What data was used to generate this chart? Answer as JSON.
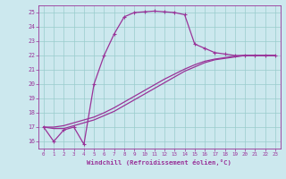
{
  "xlabel": "Windchill (Refroidissement éolien,°C)",
  "ylabel": "",
  "background_color": "#cce8ee",
  "grid_color": "#99cccc",
  "line_color": "#993399",
  "spine_color": "#993399",
  "xlim": [
    -0.5,
    23.5
  ],
  "ylim": [
    15.5,
    25.5
  ],
  "xticks": [
    0,
    1,
    2,
    3,
    4,
    5,
    6,
    7,
    8,
    9,
    10,
    11,
    12,
    13,
    14,
    15,
    16,
    17,
    18,
    19,
    20,
    21,
    22,
    23
  ],
  "yticks": [
    16,
    17,
    18,
    19,
    20,
    21,
    22,
    23,
    24,
    25
  ],
  "line1_x": [
    0,
    1,
    2,
    3,
    4,
    5,
    6,
    7,
    8,
    9,
    10,
    11,
    12,
    13,
    14,
    15,
    16,
    17,
    18,
    19,
    20,
    21,
    22,
    23
  ],
  "line1_y": [
    17.0,
    16.0,
    16.8,
    17.0,
    15.8,
    20.0,
    22.0,
    23.5,
    24.7,
    25.0,
    25.05,
    25.1,
    25.05,
    25.0,
    24.85,
    22.8,
    22.5,
    22.2,
    22.1,
    22.0,
    22.0,
    22.0,
    22.0,
    22.0
  ],
  "line2_x": [
    0,
    1,
    2,
    3,
    4,
    5,
    6,
    7,
    8,
    9,
    10,
    11,
    12,
    13,
    14,
    15,
    16,
    17,
    18,
    19,
    20,
    21,
    22,
    23
  ],
  "line2_y": [
    17.0,
    16.9,
    16.9,
    17.1,
    17.3,
    17.5,
    17.8,
    18.1,
    18.5,
    18.9,
    19.3,
    19.7,
    20.1,
    20.5,
    20.9,
    21.2,
    21.5,
    21.7,
    21.8,
    21.9,
    22.0,
    22.0,
    22.0,
    22.0
  ],
  "line3_x": [
    0,
    1,
    2,
    3,
    4,
    5,
    6,
    7,
    8,
    9,
    10,
    11,
    12,
    13,
    14,
    15,
    16,
    17,
    18,
    19,
    20,
    21,
    22,
    23
  ],
  "line3_y": [
    17.0,
    17.0,
    17.1,
    17.3,
    17.5,
    17.7,
    18.0,
    18.35,
    18.75,
    19.15,
    19.55,
    19.95,
    20.35,
    20.7,
    21.05,
    21.35,
    21.6,
    21.75,
    21.85,
    21.95,
    22.0,
    22.0,
    22.0,
    22.0
  ]
}
